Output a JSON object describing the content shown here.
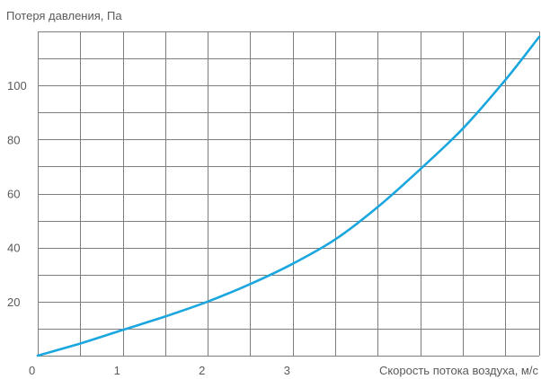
{
  "chart_data": {
    "type": "line",
    "title": "",
    "ylabel": "Потеря давления, Па",
    "xlabel": "Скорость потока воздуха, м/с",
    "xlim": [
      0,
      5.9
    ],
    "ylim": [
      0,
      120
    ],
    "x_minor_step": 0.5,
    "y_minor_step": 10,
    "x_ticks": [
      {
        "value": 0,
        "label": "0"
      },
      {
        "value": 1,
        "label": "1"
      },
      {
        "value": 2,
        "label": "2"
      },
      {
        "value": 3,
        "label": "3"
      }
    ],
    "y_ticks": [
      {
        "value": 20,
        "label": "20"
      },
      {
        "value": 40,
        "label": "40"
      },
      {
        "value": 60,
        "label": "60"
      },
      {
        "value": 80,
        "label": "80"
      },
      {
        "value": 100,
        "label": "100"
      }
    ],
    "grid": true,
    "series_color": "#1aa6df",
    "series": [
      {
        "x": [
          0,
          0.5,
          1.0,
          1.5,
          2.0,
          2.5,
          3.0,
          3.5,
          4.0,
          4.5,
          5.0,
          5.5,
          5.9
        ],
        "y": [
          0,
          4.5,
          9.5,
          14.5,
          20,
          26.5,
          34,
          43,
          55,
          69,
          84,
          102,
          118
        ]
      }
    ]
  }
}
